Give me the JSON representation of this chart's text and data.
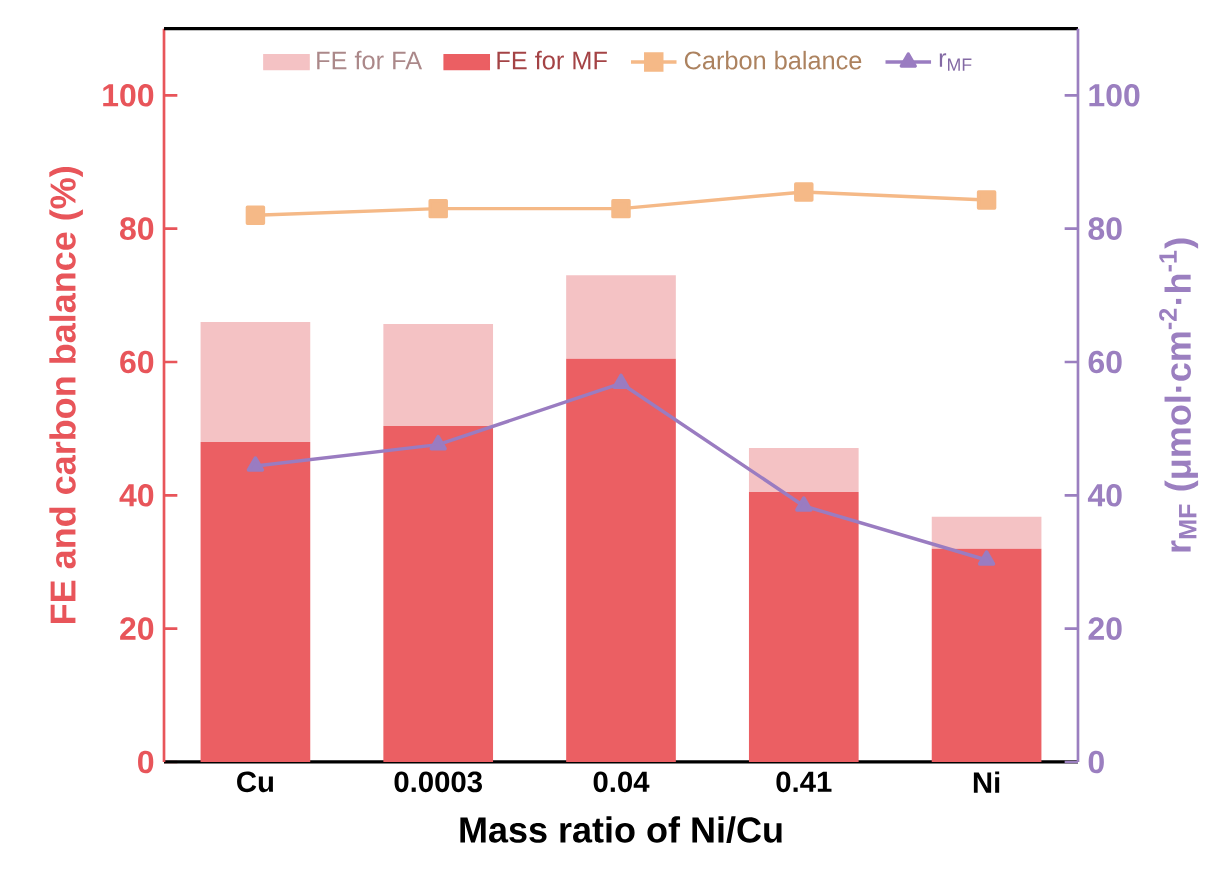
{
  "chart_data": {
    "type": "bar",
    "xlabel": "Mass ratio of Ni/Cu",
    "ylabel": "FE and carbon balance (%)",
    "y2label": "r$_{MF}$ (μmol·cm$^{-2}$·h$^{-1}$)",
    "categories": [
      "Cu",
      "0.0003",
      "0.04",
      "0.41",
      "Ni"
    ],
    "stacked": true,
    "series": [
      {
        "name": "FE for MF",
        "color": "#eb5f63",
        "values": [
          48,
          50.4,
          60.5,
          40.5,
          32
        ]
      },
      {
        "name": "FE for FA",
        "color": "#f4c2c4",
        "values": [
          18,
          15.3,
          12.5,
          6.6,
          4.8
        ]
      },
      {
        "name": "Carbon balance",
        "type": "line",
        "color": "#f5b987",
        "marker": "square",
        "values": [
          82,
          83,
          83,
          85.5,
          84.3
        ]
      },
      {
        "name": "r$_{MF}$",
        "type": "line",
        "axis": "y2",
        "color": "#9a7cc1",
        "marker": "triangle",
        "values": [
          44.4,
          47.6,
          56.8,
          38.4,
          30.3
        ]
      }
    ],
    "ylim": [
      0,
      110
    ],
    "yticks": [
      0,
      20,
      40,
      60,
      80,
      100
    ],
    "y2lim": [
      0,
      110
    ],
    "y2ticks": [
      0,
      20,
      40,
      60,
      80,
      100
    ],
    "legend": "top"
  }
}
